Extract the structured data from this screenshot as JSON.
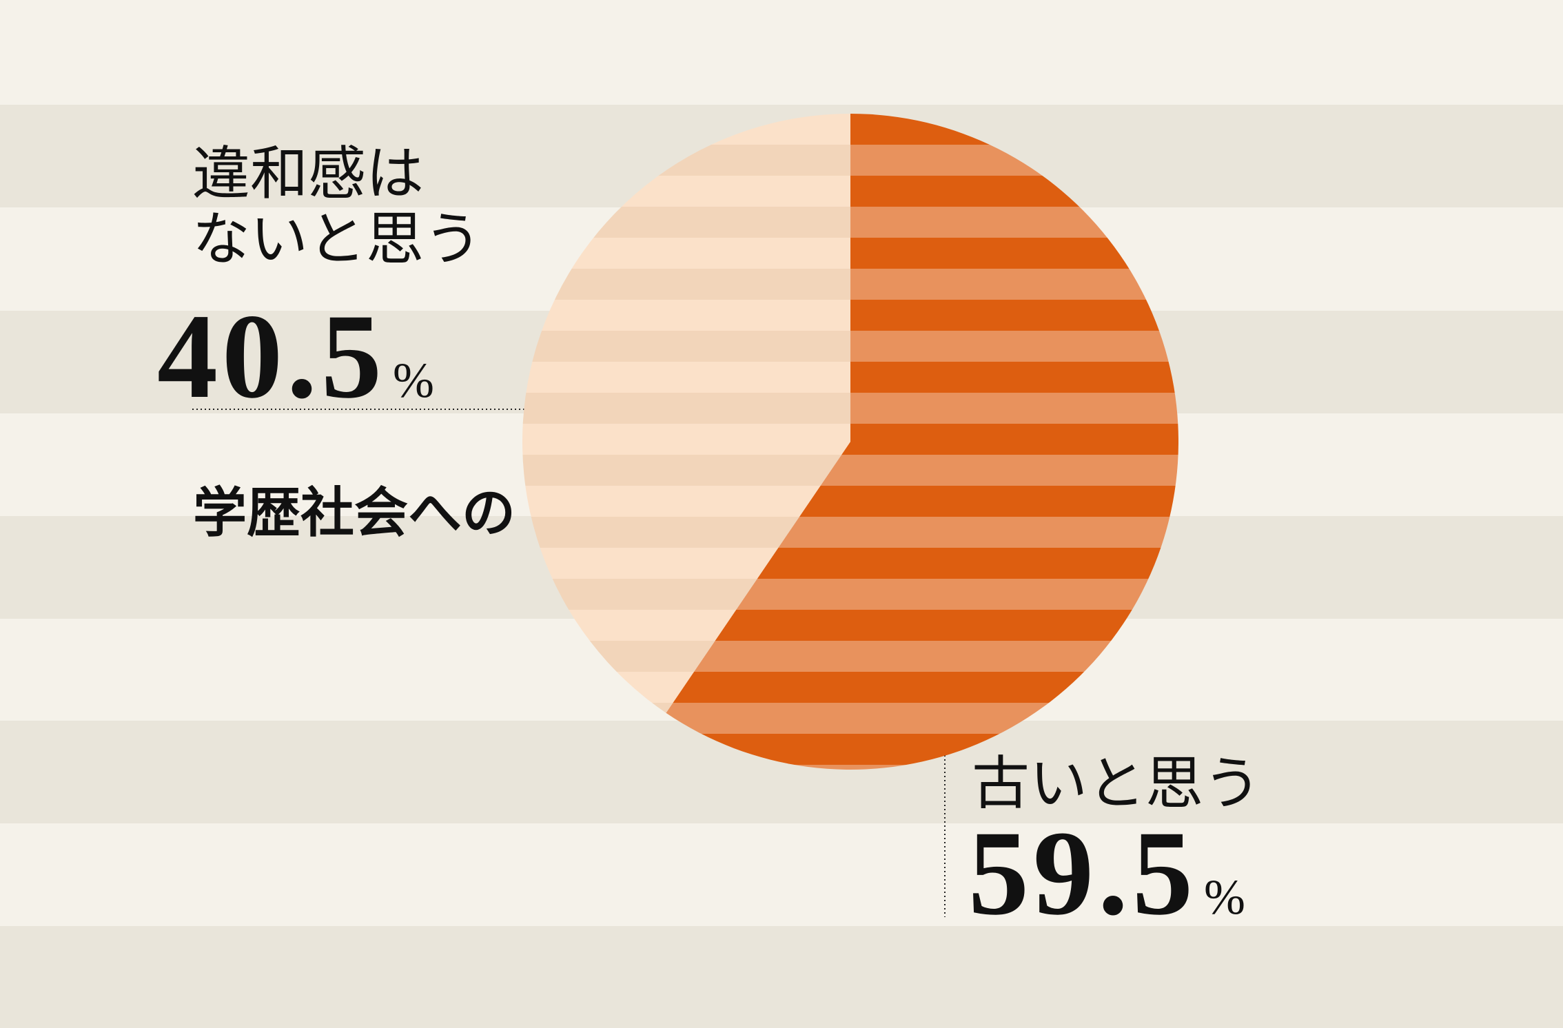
{
  "chart_data": {
    "type": "pie",
    "title": "学歴社会への",
    "categories": [
      "古いと思う",
      "違和感は\nないと思う"
    ],
    "values": [
      59.5,
      40.5
    ],
    "value_labels": [
      "59.5%",
      "40.5%"
    ],
    "colors": [
      "#dd5e10",
      "#fbe1c9"
    ]
  }
}
